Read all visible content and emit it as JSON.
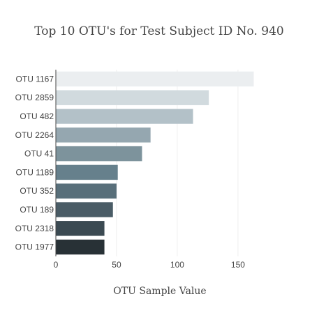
{
  "chart_data": {
    "type": "bar",
    "orientation": "horizontal",
    "title": "Top 10 OTU's for Test Subject ID No. 940",
    "xlabel": "OTU Sample Value",
    "ylabel": "",
    "xlim": [
      0,
      165
    ],
    "x_ticks": [
      0,
      50,
      100,
      150
    ],
    "grid": true,
    "categories": [
      "OTU 1167",
      "OTU 2859",
      "OTU 482",
      "OTU 2264",
      "OTU 41",
      "OTU 1189",
      "OTU 352",
      "OTU 189",
      "OTU 2318",
      "OTU 1977"
    ],
    "values": [
      163,
      126,
      113,
      78,
      71,
      51,
      50,
      47,
      40,
      40
    ],
    "colors": [
      "#ebeef0",
      "#d1dade",
      "#b3c1c8",
      "#95a7b0",
      "#7d939c",
      "#66808c",
      "#586f7a",
      "#4a5c66",
      "#3b4a52",
      "#283136"
    ]
  }
}
